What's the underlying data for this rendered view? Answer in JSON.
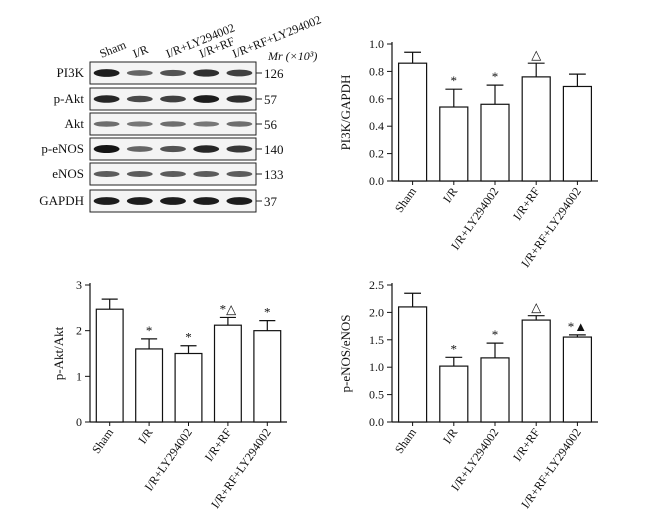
{
  "blot": {
    "lanes": [
      "Sham",
      "I/R",
      "I/R+LY294002",
      "I/R+RF",
      "I/R+RF+LY294002"
    ],
    "mr_label": "Mr (×10³)",
    "proteins": [
      {
        "name": "PI3K",
        "mw": "126",
        "intensities": [
          0.95,
          0.55,
          0.65,
          0.85,
          0.75
        ]
      },
      {
        "name": "p-Akt",
        "mw": "57",
        "intensities": [
          0.9,
          0.7,
          0.75,
          0.95,
          0.85
        ]
      },
      {
        "name": "Akt",
        "mw": "56",
        "intensities": [
          0.5,
          0.45,
          0.5,
          0.45,
          0.5
        ]
      },
      {
        "name": "p-eNOS",
        "mw": "140",
        "intensities": [
          1.0,
          0.55,
          0.65,
          0.9,
          0.8
        ]
      },
      {
        "name": "eNOS",
        "mw": "133",
        "intensities": [
          0.6,
          0.6,
          0.6,
          0.6,
          0.6
        ]
      },
      {
        "name": "GAPDH",
        "mw": "37",
        "intensities": [
          0.95,
          0.95,
          0.95,
          0.95,
          0.95
        ]
      }
    ]
  },
  "chart_data": [
    {
      "type": "bar",
      "categories": [
        "Sham",
        "I/R",
        "I/R+LY294002",
        "I/R+RF",
        "I/R+RF+LY294002"
      ],
      "values": [
        0.86,
        0.54,
        0.56,
        0.76,
        0.69
      ],
      "errors": [
        0.08,
        0.13,
        0.14,
        0.1,
        0.09
      ],
      "annotations": [
        "",
        "*",
        "*",
        "△",
        ""
      ],
      "ylabel": "PI3K/GAPDH",
      "ylim": [
        0,
        1.0
      ],
      "yticks": [
        "0.0",
        "0.2",
        "0.4",
        "0.6",
        "0.8",
        "1.0"
      ]
    },
    {
      "type": "bar",
      "categories": [
        "Sham",
        "I/R",
        "I/R+LY294002",
        "I/R+RF",
        "I/R+RF+LY294002"
      ],
      "values": [
        2.47,
        1.6,
        1.5,
        2.12,
        2.0
      ],
      "errors": [
        0.22,
        0.22,
        0.17,
        0.17,
        0.22
      ],
      "annotations": [
        "",
        "*",
        "*",
        "*△",
        "*"
      ],
      "ylabel": "p-Akt/Akt",
      "ylim": [
        0,
        3
      ],
      "yticks": [
        "0",
        "1",
        "2",
        "3"
      ]
    },
    {
      "type": "bar",
      "categories": [
        "Sham",
        "I/R",
        "I/R+LY294002",
        "I/R+RF",
        "I/R+RF+LY294002"
      ],
      "values": [
        2.1,
        1.02,
        1.17,
        1.86,
        1.55
      ],
      "errors": [
        0.25,
        0.16,
        0.27,
        0.08,
        0.04
      ],
      "annotations": [
        "",
        "*",
        "*",
        "△",
        "*▲"
      ],
      "ylabel": "p-eNOS/eNOS",
      "ylim": [
        0,
        2.5
      ],
      "yticks": [
        "0.0",
        "0.5",
        "1.0",
        "1.5",
        "2.0",
        "2.5"
      ]
    }
  ]
}
